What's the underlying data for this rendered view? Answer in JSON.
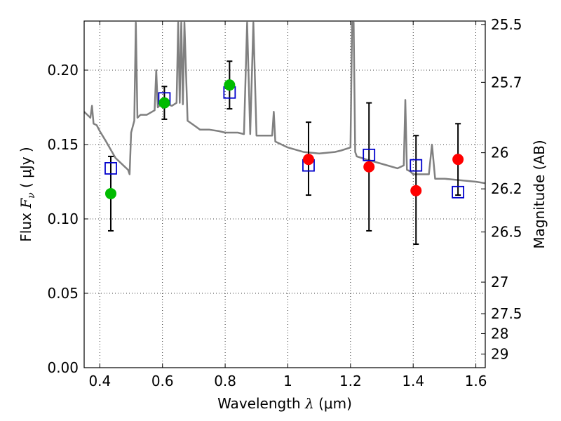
{
  "chart_data": {
    "type": "scatter",
    "title": "",
    "xlabel": "Wavelength  λ (μm)",
    "ylabel": "Flux  Fν  ( μJy )",
    "ylabel_parts": {
      "prefix": "Flux  ",
      "symbol": "F",
      "subscript": "ν",
      "suffix": "  ( μJy )"
    },
    "xlabel_parts": {
      "prefix": "Wavelength  ",
      "symbol": "λ",
      "suffix": " (μm)"
    },
    "ylabel_right": "Magnitude (AB)",
    "xlim": [
      0.35,
      1.63
    ],
    "ylim": [
      0.0,
      0.233
    ],
    "x_ticks": [
      0.4,
      0.6,
      0.8,
      1.0,
      1.2,
      1.4,
      1.6
    ],
    "x_tick_labels": [
      "0.4",
      "0.6",
      "0.8",
      "1",
      "1.2",
      "1.4",
      "1.6"
    ],
    "y_ticks": [
      0.0,
      0.05,
      0.1,
      0.15,
      0.2
    ],
    "y_tick_labels": [
      "0.00",
      "0.05",
      "0.10",
      "0.15",
      "0.20"
    ],
    "right_ticks": [
      {
        "label": "25.5",
        "flux": 0.2307
      },
      {
        "label": "25.7",
        "flux": 0.1918
      },
      {
        "label": "26",
        "flux": 0.1445
      },
      {
        "label": "26.2",
        "flux": 0.1202
      },
      {
        "label": "26.5",
        "flux": 0.0912
      },
      {
        "label": "27",
        "flux": 0.0575
      },
      {
        "label": "27.5",
        "flux": 0.0363
      },
      {
        "label": "28",
        "flux": 0.0229
      },
      {
        "label": "29",
        "flux": 0.0091
      }
    ],
    "grid": true,
    "grid_style": "dotted",
    "colors": {
      "sed": "#808080",
      "green_points": "#00bb00",
      "red_points": "#ff0000",
      "model_squares": "#0000cc",
      "errorbars": "#000000"
    },
    "series": [
      {
        "marker": "circle",
        "color": "green",
        "x": [
          0.435,
          0.606,
          0.814
        ],
        "y": [
          0.117,
          0.178,
          0.19
        ]
      },
      {
        "marker": "circle",
        "color": "red",
        "x": [
          1.066,
          1.259,
          1.409,
          1.543
        ],
        "y": [
          0.14,
          0.135,
          0.119,
          0.14
        ]
      },
      {
        "marker": "errorbar",
        "color": "black",
        "x": [
          0.435,
          0.606,
          0.814,
          1.066,
          1.259,
          1.409,
          1.543
        ],
        "y": [
          0.117,
          0.178,
          0.19,
          0.14,
          0.135,
          0.119,
          0.14
        ],
        "y_low": [
          0.092,
          0.167,
          0.174,
          0.116,
          0.092,
          0.083,
          0.116
        ],
        "y_high": [
          0.142,
          0.189,
          0.206,
          0.165,
          0.178,
          0.156,
          0.164
        ]
      },
      {
        "marker": "square",
        "color": "blue",
        "x": [
          0.435,
          0.606,
          0.814,
          1.066,
          1.259,
          1.409,
          1.543
        ],
        "y": [
          0.134,
          0.181,
          0.185,
          0.136,
          0.143,
          0.136,
          0.118
        ]
      },
      {
        "marker": "line",
        "color": "gray",
        "x": [
          0.35,
          0.37,
          0.375,
          0.38,
          0.39,
          0.4,
          0.42,
          0.45,
          0.48,
          0.49,
          0.495,
          0.5,
          0.51,
          0.515,
          0.52,
          0.53,
          0.55,
          0.575,
          0.58,
          0.585,
          0.6,
          0.63,
          0.645,
          0.65,
          0.655,
          0.66,
          0.665,
          0.67,
          0.68,
          0.7,
          0.72,
          0.75,
          0.78,
          0.8,
          0.82,
          0.84,
          0.86,
          0.87,
          0.88,
          0.89,
          0.9,
          0.93,
          0.95,
          0.955,
          0.96,
          1.0,
          1.05,
          1.1,
          1.15,
          1.17,
          1.2,
          1.205,
          1.21,
          1.215,
          1.22,
          1.25,
          1.3,
          1.35,
          1.37,
          1.375,
          1.38,
          1.39,
          1.4,
          1.45,
          1.46,
          1.47,
          1.5,
          1.55,
          1.6,
          1.63
        ],
        "y": [
          0.172,
          0.168,
          0.176,
          0.164,
          0.163,
          0.159,
          0.152,
          0.141,
          0.135,
          0.133,
          0.13,
          0.158,
          0.166,
          0.232,
          0.168,
          0.17,
          0.17,
          0.173,
          0.2,
          0.175,
          0.178,
          0.176,
          0.178,
          0.232,
          0.178,
          0.232,
          0.177,
          0.232,
          0.166,
          0.163,
          0.16,
          0.16,
          0.159,
          0.158,
          0.158,
          0.158,
          0.157,
          0.232,
          0.157,
          0.232,
          0.156,
          0.156,
          0.156,
          0.172,
          0.152,
          0.148,
          0.145,
          0.144,
          0.145,
          0.146,
          0.148,
          0.232,
          0.232,
          0.145,
          0.142,
          0.14,
          0.137,
          0.134,
          0.136,
          0.18,
          0.133,
          0.132,
          0.13,
          0.13,
          0.15,
          0.127,
          0.127,
          0.126,
          0.125,
          0.124
        ]
      }
    ]
  }
}
